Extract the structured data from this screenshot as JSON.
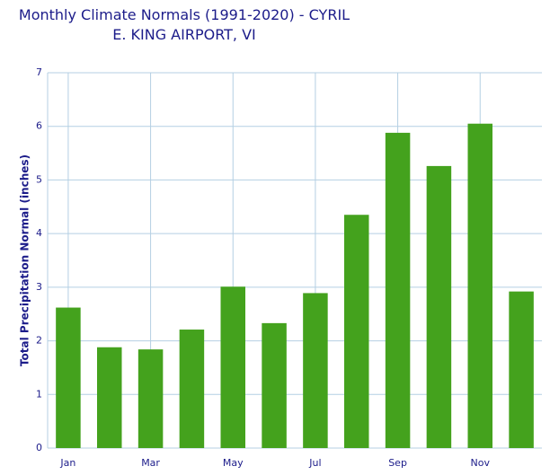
{
  "chart_data": {
    "type": "bar",
    "title": "Monthly Climate Normals (1991-2020) - CYRIL E. KING AIRPORT, VI",
    "y_label": "Total Precipitation Normal (inches)",
    "categories": [
      "Jan",
      null,
      "Mar",
      null,
      "May",
      null,
      "Jul",
      null,
      "Sep",
      null,
      "Nov",
      null
    ],
    "values": [
      2.62,
      1.88,
      1.84,
      2.21,
      3.01,
      2.33,
      2.89,
      4.35,
      5.88,
      5.26,
      6.05,
      2.92
    ],
    "color": "#44a21d",
    "ylim": [
      0,
      7
    ],
    "yticks": [
      0,
      1,
      2,
      3,
      4,
      5,
      6,
      7
    ],
    "grid": true
  }
}
